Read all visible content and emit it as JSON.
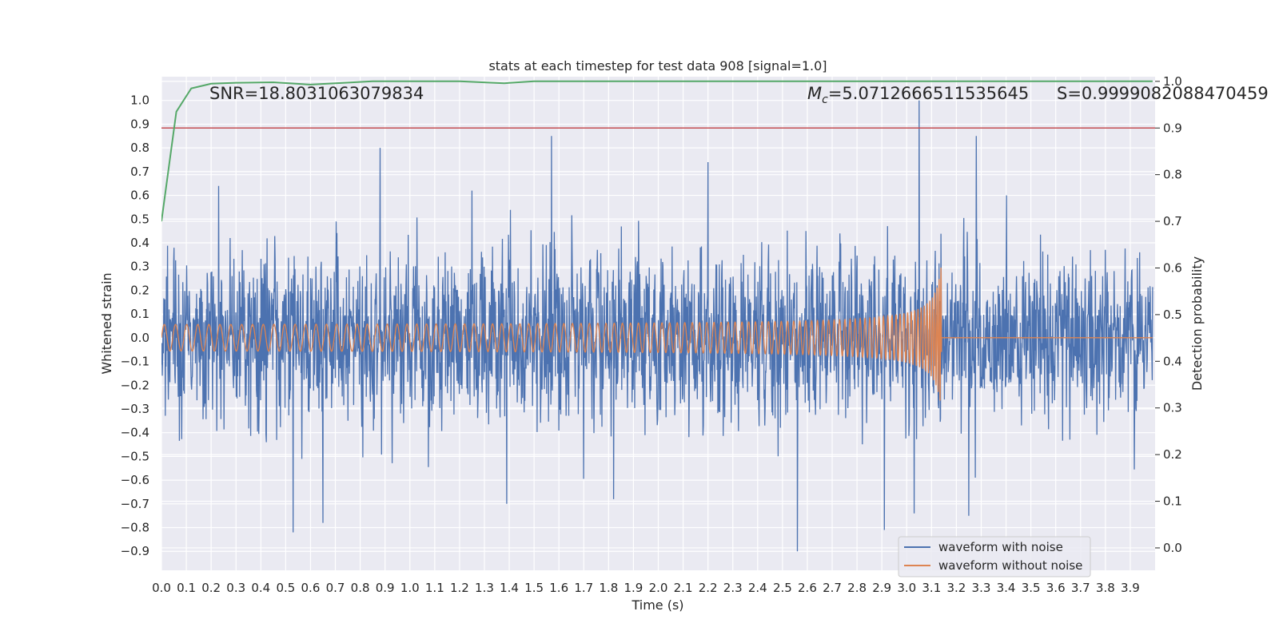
{
  "chart_data": {
    "type": "line",
    "title": "stats at each timestep for test data 908 [signal=1.0]",
    "xlabel": "Time (s)",
    "ylabel_left": "Whitened strain",
    "ylabel_right": "Detection probability",
    "xlim": [
      0.0,
      4.0
    ],
    "ylim_left": [
      -0.98,
      1.1
    ],
    "ylim_right": [
      -0.048,
      1.01
    ],
    "grid": true,
    "legend_placement": "lower-right",
    "x_tick_labels": [
      "0.0",
      "0.1",
      "0.2",
      "0.3",
      "0.4",
      "0.5",
      "0.6",
      "0.7",
      "0.8",
      "0.9",
      "1.0",
      "1.1",
      "1.2",
      "1.3",
      "1.4",
      "1.5",
      "1.6",
      "1.7",
      "1.8",
      "1.9",
      "2.0",
      "2.1",
      "2.2",
      "2.3",
      "2.4",
      "2.5",
      "2.6",
      "2.7",
      "2.8",
      "2.9",
      "3.0",
      "3.1",
      "3.2",
      "3.3",
      "3.4",
      "3.5",
      "3.6",
      "3.7",
      "3.8",
      "3.9"
    ],
    "y_left_tick_labels": [
      "1.0",
      "0.9",
      "0.8",
      "0.7",
      "0.6",
      "0.5",
      "0.4",
      "0.3",
      "0.2",
      "0.1",
      "0.0",
      "−0.1",
      "−0.2",
      "−0.3",
      "−0.4",
      "−0.5",
      "−0.6",
      "−0.7",
      "−0.8",
      "−0.9"
    ],
    "y_right_tick_labels": [
      "1.0",
      "0.9",
      "0.8",
      "0.7",
      "0.6",
      "0.5",
      "0.4",
      "0.3",
      "0.2",
      "0.1",
      "0.0"
    ],
    "annotations": {
      "snr": "SNR=18.8031063079834",
      "mc_symbol": "M",
      "mc_sub": "c",
      "mc_value": "=5.0712666511535645",
      "s": "S=0.9999082088470459"
    },
    "threshold": {
      "value": 0.9,
      "axis": "right",
      "color": "#c44e52"
    },
    "series": [
      {
        "name": "waveform with noise",
        "axis": "left",
        "color": "#4c72b0",
        "noise_std": 0.17,
        "spikes": [
          [
            0.88,
            0.8
          ],
          [
            1.57,
            0.85
          ],
          [
            3.05,
            1.0
          ],
          [
            3.28,
            0.85
          ],
          [
            2.2,
            0.74
          ],
          [
            0.53,
            -0.82
          ],
          [
            0.65,
            -0.78
          ],
          [
            2.56,
            -0.9
          ],
          [
            2.91,
            -0.81
          ],
          [
            3.03,
            -0.74
          ],
          [
            1.39,
            -0.7
          ],
          [
            1.82,
            -0.68
          ],
          [
            3.25,
            -0.75
          ],
          [
            0.23,
            0.64
          ],
          [
            1.25,
            0.62
          ]
        ]
      },
      {
        "name": "waveform without noise",
        "axis": "left",
        "color": "#dd8452",
        "f_start_hz": 22,
        "merger_time": 3.14,
        "amp_start": 0.05,
        "amp_peak": 0.32
      },
      {
        "name": "detection probability",
        "axis": "right",
        "color": "#55a868",
        "x": [
          0.0,
          0.06,
          0.12,
          0.2,
          0.3,
          0.45,
          0.6,
          0.7,
          0.85,
          1.0,
          1.2,
          1.38,
          1.5,
          1.7,
          2.0,
          2.5,
          3.0,
          3.5,
          3.99
        ],
        "y": [
          0.7,
          0.935,
          0.985,
          0.995,
          0.997,
          0.998,
          0.993,
          0.996,
          1.0,
          1.0,
          1.0,
          0.996,
          1.0,
          1.0,
          1.0,
          1.0,
          1.0,
          1.0,
          1.0
        ]
      }
    ],
    "legend": [
      "waveform with noise",
      "waveform without noise"
    ]
  }
}
